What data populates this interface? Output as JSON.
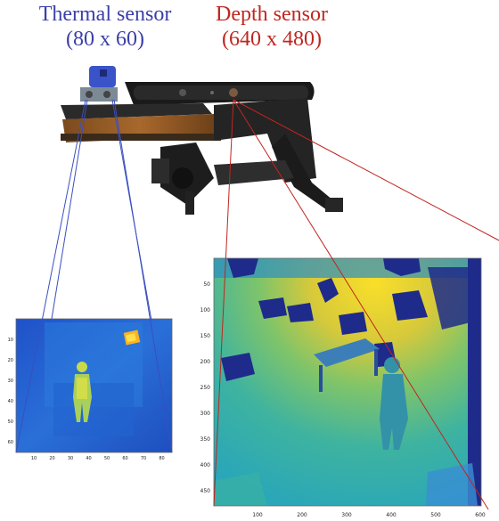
{
  "thermal_sensor": {
    "title": "Thermal sensor",
    "resolution": "(80 x 60)",
    "color": "#3b3fa8"
  },
  "depth_sensor": {
    "title": "Depth sensor",
    "resolution": "(640 x 480)",
    "color": "#c0261f"
  },
  "thermal_image": {
    "x_ticks": [
      "10",
      "20",
      "30",
      "40",
      "50",
      "60",
      "70",
      "80"
    ],
    "y_ticks": [
      "10",
      "20",
      "30",
      "40",
      "50",
      "60"
    ]
  },
  "depth_image": {
    "x_ticks": [
      "100",
      "200",
      "300",
      "400",
      "500",
      "600"
    ],
    "y_ticks": [
      "50",
      "100",
      "150",
      "200",
      "250",
      "300",
      "350",
      "400",
      "450"
    ]
  }
}
